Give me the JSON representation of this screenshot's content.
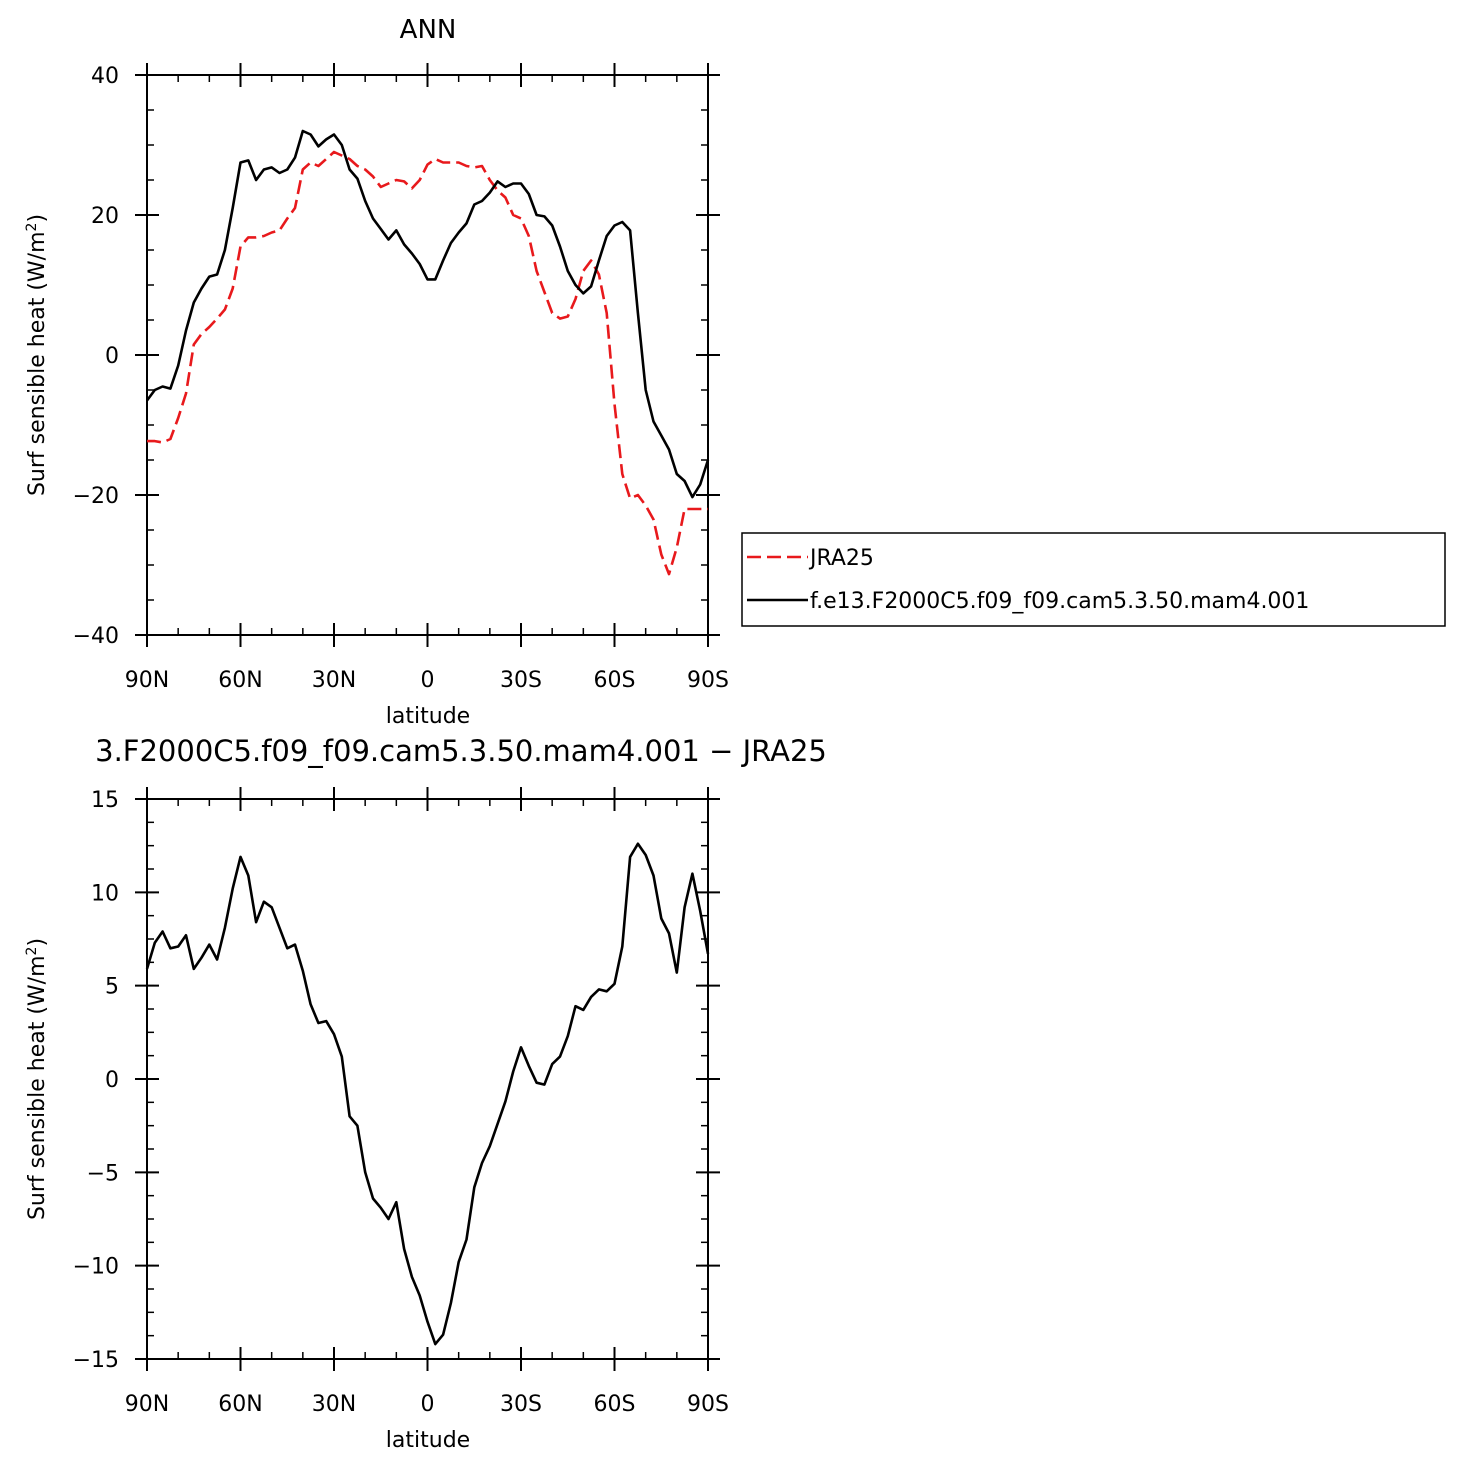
{
  "chart_data": [
    {
      "type": "line",
      "title": "ANN",
      "xlabel": "latitude",
      "ylabel": "Surf sensible heat (W/m",
      "ylabel_sup": "2",
      "ylabel_close": ")",
      "x_ticks": [
        "90N",
        "60N",
        "30N",
        "0",
        "30S",
        "60S",
        "90S"
      ],
      "y_ticks": [
        "40",
        "20",
        "0",
        "−20",
        "−40"
      ],
      "xlim": [
        90,
        -90
      ],
      "ylim": [
        -40,
        40
      ],
      "legend_position": "right",
      "series": [
        {
          "name": "JRA25",
          "color": "#e8191c",
          "style": "dashed",
          "x": [
            90,
            87.5,
            85,
            82.5,
            80,
            77.5,
            75,
            72.5,
            70,
            67.5,
            65,
            62.5,
            60,
            57.5,
            55,
            52.5,
            50,
            47.5,
            45,
            42.5,
            40,
            37.5,
            35,
            32.5,
            30,
            27.5,
            25,
            22.5,
            20,
            17.5,
            15,
            12.5,
            10,
            7.5,
            5,
            2.5,
            0,
            -2.5,
            -5,
            -7.5,
            -10,
            -12.5,
            -15,
            -17.5,
            -20,
            -22.5,
            -25,
            -27.5,
            -30,
            -32.5,
            -35,
            -37.5,
            -40,
            -42.5,
            -45,
            -47.5,
            -50,
            -52.5,
            -55,
            -57.5,
            -60,
            -62.5,
            -65,
            -67.5,
            -70,
            -72.5,
            -75,
            -77.5,
            -80,
            -82.5,
            -85,
            -87.5,
            -90
          ],
          "y": [
            -12.3,
            -12.3,
            -12.5,
            -12.0,
            -9.0,
            -5.5,
            1.5,
            3.0,
            4.0,
            5.2,
            6.5,
            9.5,
            15.5,
            16.8,
            16.8,
            17.0,
            17.5,
            17.8,
            19.5,
            21.0,
            26.5,
            27.5,
            27.0,
            28.0,
            29.0,
            28.5,
            28.0,
            27.0,
            26.5,
            25.5,
            24.0,
            24.5,
            25.0,
            24.8,
            23.8,
            25.0,
            27.2,
            28.0,
            27.5,
            27.5,
            27.5,
            27.0,
            26.8,
            27.0,
            25.0,
            23.5,
            22.5,
            20.0,
            19.5,
            17.0,
            12.0,
            9.0,
            6.0,
            5.2,
            5.5,
            8.0,
            12.0,
            13.5,
            11.5,
            6.0,
            -7.0,
            -17.0,
            -20.5,
            -20.0,
            -21.5,
            -23.5,
            -28.5,
            -31.3,
            -27.5,
            -22.0,
            -22.0,
            -22.0,
            -22.0
          ]
        },
        {
          "name": "f.e13.F2000C5.f09_f09.cam5.3.50.mam4.001",
          "color": "#000000",
          "style": "solid",
          "x": [
            90,
            87.5,
            85,
            82.5,
            80,
            77.5,
            75,
            72.5,
            70,
            67.5,
            65,
            62.5,
            60,
            57.5,
            55,
            52.5,
            50,
            47.5,
            45,
            42.5,
            40,
            37.5,
            35,
            32.5,
            30,
            27.5,
            25,
            22.5,
            20,
            17.5,
            15,
            12.5,
            10,
            7.5,
            5,
            2.5,
            0,
            -2.5,
            -5,
            -7.5,
            -10,
            -12.5,
            -15,
            -17.5,
            -20,
            -22.5,
            -25,
            -27.5,
            -30,
            -32.5,
            -35,
            -37.5,
            -40,
            -42.5,
            -45,
            -47.5,
            -50,
            -52.5,
            -55,
            -57.5,
            -60,
            -62.5,
            -65,
            -67.5,
            -70,
            -72.5,
            -75,
            -77.5,
            -80,
            -82.5,
            -85,
            -87.5,
            -90
          ],
          "y": [
            -6.5,
            -5.0,
            -4.5,
            -4.8,
            -1.5,
            3.5,
            7.5,
            9.5,
            11.2,
            11.5,
            15.0,
            21.0,
            27.5,
            27.8,
            25.0,
            26.5,
            26.8,
            26.0,
            26.5,
            28.2,
            32.0,
            31.5,
            29.8,
            30.8,
            31.5,
            30.0,
            26.5,
            25.2,
            22.0,
            19.5,
            18.0,
            16.5,
            17.8,
            15.8,
            14.5,
            13.0,
            10.8,
            10.8,
            13.5,
            16.0,
            17.5,
            18.8,
            21.5,
            22.0,
            23.2,
            24.8,
            24.0,
            24.5,
            24.5,
            23.0,
            20.0,
            19.8,
            18.5,
            15.5,
            12.0,
            10.0,
            8.8,
            9.8,
            13.5,
            17.0,
            18.5,
            19.0,
            17.8,
            6.0,
            -5.0,
            -9.5,
            -11.5,
            -13.5,
            -17.0,
            -18.0,
            -20.3,
            -18.5,
            -15.0
          ]
        }
      ]
    },
    {
      "type": "line",
      "title": "3.F2000C5.f09_f09.cam5.3.50.mam4.001 − JRA25",
      "xlabel": "latitude",
      "ylabel": "Surf sensible heat (W/m",
      "ylabel_sup": "2",
      "ylabel_close": ")",
      "x_ticks": [
        "90N",
        "60N",
        "30N",
        "0",
        "30S",
        "60S",
        "90S"
      ],
      "y_ticks": [
        "15",
        "10",
        "5",
        "0",
        "−5",
        "−10",
        "−15"
      ],
      "xlim": [
        90,
        -90
      ],
      "ylim": [
        -15,
        15
      ],
      "series": [
        {
          "color": "#000000",
          "style": "solid",
          "x": [
            90,
            87.5,
            85,
            82.5,
            80,
            77.5,
            75,
            72.5,
            70,
            67.5,
            65,
            62.5,
            60,
            57.5,
            55,
            52.5,
            50,
            47.5,
            45,
            42.5,
            40,
            37.5,
            35,
            32.5,
            30,
            27.5,
            25,
            22.5,
            20,
            17.5,
            15,
            12.5,
            10,
            7.5,
            5,
            2.5,
            0,
            -2.5,
            -5,
            -7.5,
            -10,
            -12.5,
            -15,
            -17.5,
            -20,
            -22.5,
            -25,
            -27.5,
            -30,
            -32.5,
            -35,
            -37.5,
            -40,
            -42.5,
            -45,
            -47.5,
            -50,
            -52.5,
            -55,
            -57.5,
            -60,
            -62.5,
            -65,
            -67.5,
            -70,
            -72.5,
            -75,
            -77.5,
            -80,
            -82.5,
            -85,
            -87.5,
            -90
          ],
          "y": [
            5.9,
            7.3,
            7.9,
            7.0,
            7.1,
            7.7,
            5.9,
            6.5,
            7.2,
            6.4,
            8.1,
            10.2,
            11.9,
            10.9,
            8.4,
            9.5,
            9.2,
            8.1,
            7.0,
            7.2,
            5.8,
            4.0,
            3.0,
            3.1,
            2.4,
            1.2,
            -2.0,
            -2.5,
            -5.0,
            -6.4,
            -6.9,
            -7.5,
            -6.6,
            -9.1,
            -10.6,
            -11.6,
            -13.0,
            -14.2,
            -13.7,
            -12.0,
            -9.8,
            -8.6,
            -5.8,
            -4.5,
            -3.6,
            -2.4,
            -1.2,
            0.4,
            1.7,
            0.7,
            -0.2,
            -0.3,
            0.8,
            1.2,
            2.3,
            3.9,
            3.7,
            4.4,
            4.8,
            4.7,
            5.1,
            7.1,
            11.9,
            12.6,
            12.0,
            10.9,
            8.6,
            7.8,
            5.7,
            9.2,
            11.0,
            9.0,
            6.7
          ]
        }
      ]
    }
  ]
}
